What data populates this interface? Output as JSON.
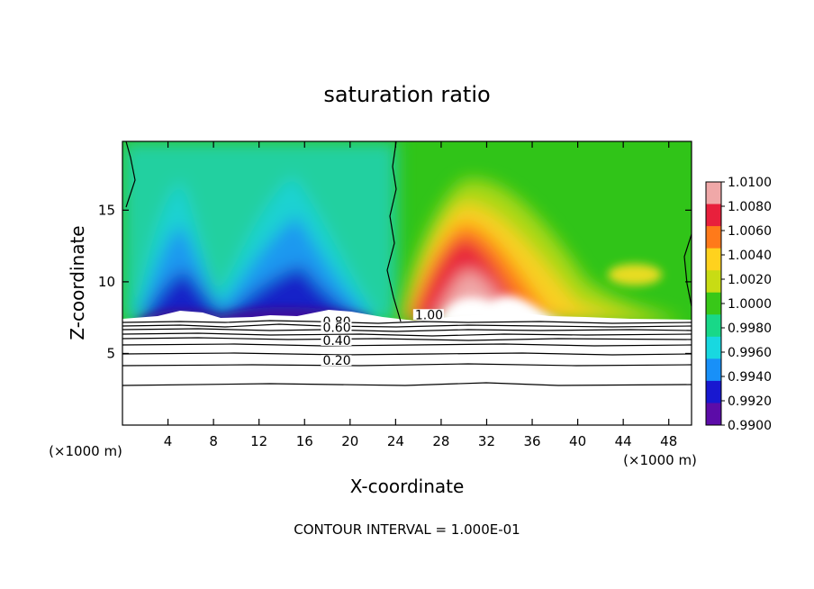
{
  "chart_data": {
    "type": "heatmap",
    "title": "saturation ratio",
    "xlabel": "X-coordinate",
    "ylabel": "Z-coordinate",
    "x_unit": "(×1000 m)",
    "y_unit": "(×1000 m)",
    "xlim": [
      0,
      50
    ],
    "ylim": [
      0,
      19.8
    ],
    "x_ticks": [
      4,
      8,
      12,
      16,
      20,
      24,
      28,
      32,
      36,
      40,
      44,
      48
    ],
    "y_ticks": [
      5,
      10,
      15
    ],
    "footer": "CONTOUR INTERVAL = 1.000E-01",
    "colorbar": {
      "labels": [
        "1.0100",
        "1.0080",
        "1.0060",
        "1.0040",
        "1.0020",
        "1.0000",
        "0.9980",
        "0.9960",
        "0.9940",
        "0.9920",
        "0.9900"
      ],
      "colors": [
        "#f0a8a8",
        "#e8203c",
        "#ff7a1a",
        "#ffd21e",
        "#c8dc14",
        "#38c818",
        "#18d888",
        "#18d8e0",
        "#1890f8",
        "#1818d0",
        "#5c0ca8"
      ]
    },
    "field_background": "#ffffff",
    "contour_line_color": "#000000",
    "contour_labels": [
      {
        "text": "1.00",
        "x": 25.7,
        "z": 7.4
      },
      {
        "text": "0.80",
        "x": 17.6,
        "z": 6.9
      },
      {
        "text": "0.60",
        "x": 17.6,
        "z": 6.5
      },
      {
        "text": "0.40",
        "x": 17.6,
        "z": 5.6
      },
      {
        "text": "0.20",
        "x": 17.6,
        "z": 4.2
      }
    ]
  }
}
